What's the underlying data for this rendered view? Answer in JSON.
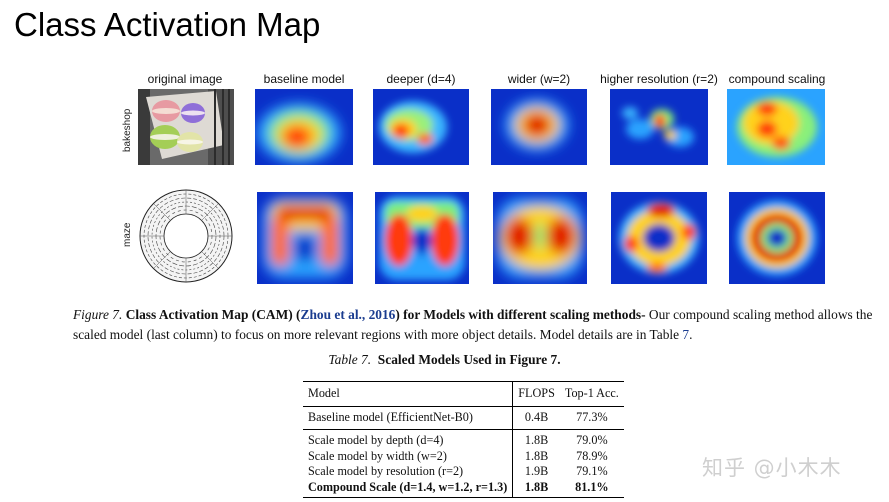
{
  "slide": {
    "title": "Class Activation Map"
  },
  "figure": {
    "columns": [
      {
        "label": "original image"
      },
      {
        "label": "baseline model"
      },
      {
        "label": "deeper (d=4)"
      },
      {
        "label": "wider (w=2)"
      },
      {
        "label": "higher resolution (r=2)"
      },
      {
        "label": "compound scaling"
      }
    ],
    "rows": [
      {
        "label": "bakeshop"
      },
      {
        "label": "maze"
      }
    ]
  },
  "caption": {
    "figure_label": "Figure 7.",
    "bold_prefix": "Class Activation Map (CAM) (",
    "cite_link": "Zhou et al., 2016",
    "bold_suffix": ") for Models with different scaling methods-",
    "text": " Our compound scaling method allows the scaled model (last column) to focus on more relevant regions with more object details. Model details are in Table ",
    "table_link": "7",
    "end": "."
  },
  "table": {
    "caption_label": "Table 7.",
    "caption_bold": "Scaled Models Used in Figure ",
    "caption_link": "7",
    "caption_end": ".",
    "headers": [
      "Model",
      "FLOPS",
      "Top-1 Acc."
    ],
    "baseline": {
      "model": "Baseline model (EfficientNet-B0)",
      "flops": "0.4B",
      "acc": "77.3%"
    },
    "rows": [
      {
        "model": "Scale model by depth (d=4)",
        "flops": "1.8B",
        "acc": "79.0%"
      },
      {
        "model": "Scale model by width (w=2)",
        "flops": "1.8B",
        "acc": "78.9%"
      },
      {
        "model": "Scale model by resolution (r=2)",
        "flops": "1.9B",
        "acc": "79.1%"
      }
    ],
    "compound": {
      "model": "Compound Scale (d=1.4, w=1.2, r=1.3)",
      "flops": "1.8B",
      "acc": "81.1%"
    }
  },
  "watermark": "知乎 @小木木"
}
